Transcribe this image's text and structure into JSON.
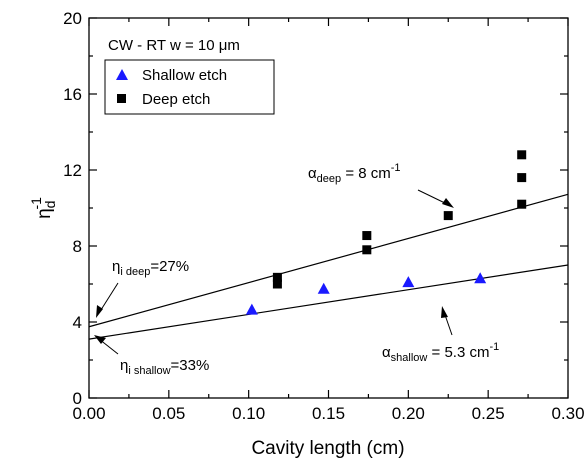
{
  "chart_data": {
    "type": "scatter",
    "title": "",
    "xlabel": "Cavity length (cm)",
    "ylabel_main": "η",
    "ylabel_sub": "d",
    "ylabel_sup": "-1",
    "xlim": [
      0.0,
      0.3
    ],
    "ylim": [
      0,
      20
    ],
    "x_ticks": [
      0.0,
      0.05,
      0.1,
      0.15,
      0.2,
      0.25,
      0.3
    ],
    "x_tick_labels": [
      "0.00",
      "0.05",
      "0.10",
      "0.15",
      "0.20",
      "0.25",
      "0.30"
    ],
    "y_ticks": [
      0,
      4,
      8,
      12,
      16,
      20
    ],
    "y_tick_labels": [
      "0",
      "4",
      "8",
      "12",
      "16",
      "20"
    ],
    "grid": false,
    "legend_header": "CW - RT w = 10 μm",
    "legend_position": "top-left",
    "series": [
      {
        "name": "Shallow etch",
        "marker": "triangle",
        "color": "#1a1aff",
        "points": [
          {
            "x": 0.102,
            "y": 4.65
          },
          {
            "x": 0.147,
            "y": 5.75
          },
          {
            "x": 0.2,
            "y": 6.1
          },
          {
            "x": 0.245,
            "y": 6.3
          }
        ]
      },
      {
        "name": "Deep etch",
        "marker": "square",
        "color": "#000000",
        "points": [
          {
            "x": 0.118,
            "y": 6.35
          },
          {
            "x": 0.118,
            "y": 6.0
          },
          {
            "x": 0.174,
            "y": 8.55
          },
          {
            "x": 0.174,
            "y": 7.8
          },
          {
            "x": 0.225,
            "y": 9.6
          },
          {
            "x": 0.271,
            "y": 12.8
          },
          {
            "x": 0.271,
            "y": 11.6
          },
          {
            "x": 0.271,
            "y": 10.2
          }
        ]
      }
    ],
    "fit_lines": [
      {
        "id": "deep",
        "x": [
          0.0,
          0.3
        ],
        "y": [
          3.75,
          10.72
        ]
      },
      {
        "id": "shallow",
        "x": [
          0.0,
          0.3
        ],
        "y": [
          3.1,
          7.0
        ]
      }
    ],
    "annotations": {
      "alpha_deep": {
        "base": "α",
        "sub": "deep",
        "text": " = 8 cm",
        "sup": "-1"
      },
      "eta_deep": {
        "base": "η",
        "sub": "i deep",
        "text": "=27%"
      },
      "alpha_shallow": {
        "base": "α",
        "sub": "shallow",
        "text": " = 5.3 cm",
        "sup": "-1"
      },
      "eta_shallow": {
        "base": "η",
        "sub": "i shallow",
        "text": "=33%"
      }
    }
  }
}
